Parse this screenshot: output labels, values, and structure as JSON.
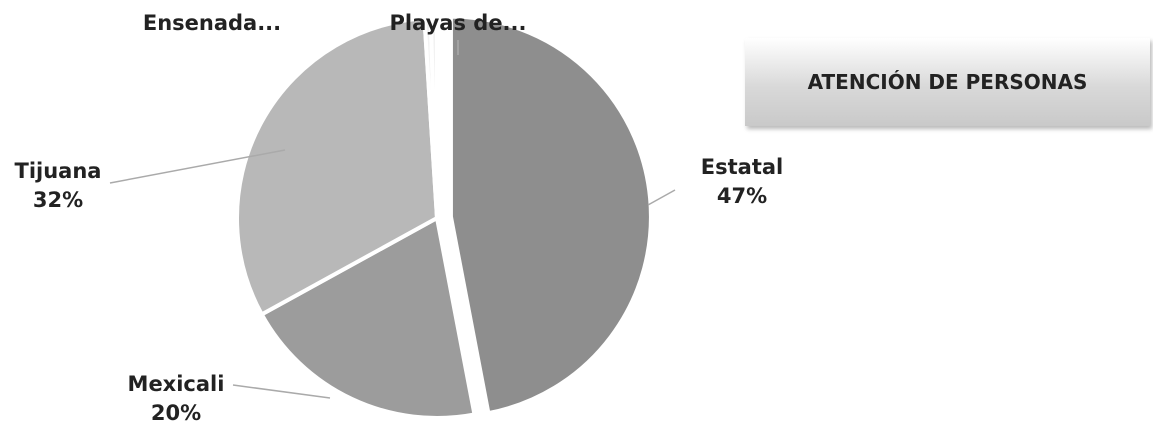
{
  "chart_data": {
    "type": "pie",
    "title": "ATENCIÓN DE PERSONAS",
    "categories": [
      "Estatal",
      "Mexicali",
      "Tijuana",
      "Ensenada...",
      "Playas de..."
    ],
    "values": [
      47,
      20,
      32,
      0.5,
      0.5
    ],
    "value_labels": [
      "47%",
      "20%",
      "32%",
      null,
      null
    ],
    "colors": [
      "#8e8e8e",
      "#9c9c9c",
      "#b8b8b8",
      "#f2f2f2",
      "#f2f2f2"
    ]
  }
}
